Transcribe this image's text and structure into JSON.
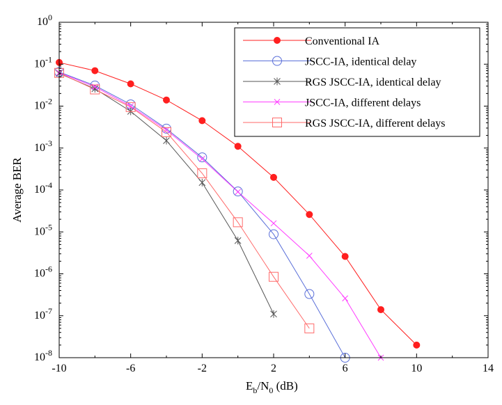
{
  "chart_data": {
    "type": "line",
    "yscale": "log",
    "xlabel_main": "E",
    "xlabel_sub1": "b",
    "xlabel_mid": "/N",
    "xlabel_sub2": "0",
    "xlabel_tail": " (dB)",
    "ylabel": "Average BER",
    "xlim": [
      -10,
      14
    ],
    "ylim_exp": [
      -8,
      0
    ],
    "xticks": [
      "-10",
      "-6",
      "-2",
      "2",
      "6",
      "10",
      "14"
    ],
    "xtick_values": [
      -10,
      -6,
      -2,
      2,
      6,
      10,
      14
    ],
    "yticks": [
      {
        "base": "10",
        "exp": "0",
        "value": 0
      },
      {
        "base": "10",
        "exp": "-1",
        "value": -1
      },
      {
        "base": "10",
        "exp": "-2",
        "value": -2
      },
      {
        "base": "10",
        "exp": "-3",
        "value": -3
      },
      {
        "base": "10",
        "exp": "-4",
        "value": -4
      },
      {
        "base": "10",
        "exp": "-5",
        "value": -5
      },
      {
        "base": "10",
        "exp": "-6",
        "value": -6
      },
      {
        "base": "10",
        "exp": "-7",
        "value": -7
      },
      {
        "base": "10",
        "exp": "-8",
        "value": -8
      }
    ],
    "series": [
      {
        "name": "Conventional IA",
        "color": "#ff1f1f",
        "marker": "filled-circle",
        "x": [
          -10,
          -8,
          -6,
          -4,
          -2,
          0,
          2,
          4,
          6,
          8,
          10
        ],
        "y": [
          0.11,
          0.07,
          0.034,
          0.014,
          0.0045,
          0.0011,
          0.0002,
          2.6e-05,
          2.6e-06,
          1.4e-07,
          2e-08
        ]
      },
      {
        "name": "JSCC-IA, identical delay",
        "color": "#5a6fd9",
        "marker": "open-circle",
        "x": [
          -10,
          -8,
          -6,
          -4,
          -2,
          0,
          2,
          4,
          6
        ],
        "y": [
          0.065,
          0.031,
          0.011,
          0.0029,
          0.0006,
          9.2e-05,
          8.8e-06,
          3.3e-07,
          1e-08
        ]
      },
      {
        "name": "RGS JSCC-IA, identical delay",
        "color": "#555555",
        "marker": "star",
        "x": [
          -10,
          -8,
          -6,
          -4,
          -2,
          0,
          2
        ],
        "y": [
          0.06,
          0.026,
          0.0075,
          0.0015,
          0.00015,
          6.2e-06,
          1.1e-07
        ]
      },
      {
        "name": "JSCC-IA, different delays",
        "color": "#ff3dff",
        "marker": "x",
        "x": [
          -10,
          -8,
          -6,
          -4,
          -2,
          0,
          2,
          4,
          6,
          8
        ],
        "y": [
          0.063,
          0.029,
          0.01,
          0.0027,
          0.00055,
          9e-05,
          1.6e-05,
          2.7e-06,
          2.6e-07,
          1e-08
        ]
      },
      {
        "name": "RGS JSCC-IA, different delays",
        "color": "#ff6a6a",
        "marker": "open-square",
        "x": [
          -10,
          -8,
          -6,
          -4,
          -2,
          0,
          2,
          4
        ],
        "y": [
          0.062,
          0.025,
          0.0095,
          0.0024,
          0.00025,
          1.7e-05,
          8.5e-07,
          5e-08
        ]
      }
    ],
    "legend_position": "top-right",
    "grid": false
  }
}
